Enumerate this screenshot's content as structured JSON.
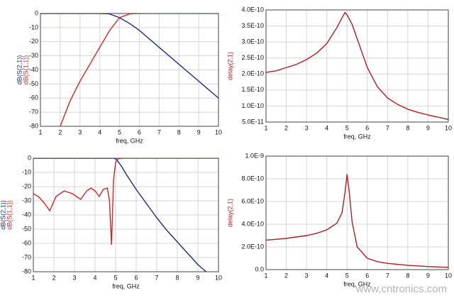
{
  "chart_data": [
    {
      "type": "line",
      "x_label": "freq, GHz",
      "x": [
        1,
        1.5,
        2,
        2.5,
        3,
        3.5,
        4,
        4.5,
        5,
        5.5,
        6,
        6.5,
        7,
        7.5,
        8,
        8.5,
        9,
        9.5,
        10
      ],
      "series": [
        {
          "name": "dB(S(2,1))",
          "color": "#1c2a8a",
          "values": [
            0,
            0,
            0,
            0,
            0,
            0,
            0,
            -0.3,
            -3,
            -7,
            -12,
            -18,
            -24,
            -30,
            -36,
            -42,
            -48,
            -54,
            -60
          ]
        },
        {
          "name": "dB(S(1,1))",
          "color": "#d42424",
          "values": [
            null,
            null,
            -80,
            -62,
            -48,
            -36,
            -24,
            -12,
            -3,
            -0.3,
            0,
            0,
            0,
            0,
            0,
            0,
            0,
            0,
            0
          ]
        }
      ],
      "xlim": [
        1,
        10
      ],
      "xticks": [
        1,
        2,
        3,
        4,
        5,
        6,
        7,
        8,
        9,
        10
      ],
      "ylim": [
        -80,
        0
      ],
      "yticks": [
        -80,
        -70,
        -60,
        -50,
        -40,
        -30,
        -20,
        -10,
        0
      ],
      "grid": true
    },
    {
      "type": "line",
      "x_label": "freq, GHz",
      "x": [
        1,
        1.5,
        2,
        2.5,
        3,
        3.5,
        4,
        4.5,
        4.75,
        4.9,
        5,
        5.25,
        5.5,
        6,
        6.5,
        7,
        7.5,
        8,
        8.5,
        9,
        9.5,
        10
      ],
      "series": [
        {
          "name": "delay(2,1)",
          "color": "#b51c1c",
          "values": [
            2.05e-10,
            2.1e-10,
            2.2e-10,
            2.3e-10,
            2.45e-10,
            2.65e-10,
            2.95e-10,
            3.45e-10,
            3.75e-10,
            3.92e-10,
            3.85e-10,
            3.55e-10,
            3.1e-10,
            2.2e-10,
            1.6e-10,
            1.25e-10,
            1.05e-10,
            9e-11,
            8e-11,
            7.2e-11,
            6.5e-11,
            5.8e-11
          ]
        }
      ],
      "xlim": [
        1,
        10
      ],
      "xticks": [
        1,
        2,
        3,
        4,
        5,
        6,
        7,
        8,
        9,
        10
      ],
      "ylim": [
        5e-11,
        4e-10
      ],
      "yticks": [
        {
          "value": 5e-11,
          "label": "5.0E-11"
        },
        {
          "value": 1e-10,
          "label": "1.0E-10"
        },
        {
          "value": 1.5e-10,
          "label": "1.5E-10"
        },
        {
          "value": 2e-10,
          "label": "2.0E-10"
        },
        {
          "value": 2.5e-10,
          "label": "2.5E-10"
        },
        {
          "value": 3e-10,
          "label": "3.0E-10"
        },
        {
          "value": 3.5e-10,
          "label": "3.5E-10"
        },
        {
          "value": 4e-10,
          "label": "4.0E-10"
        }
      ],
      "grid": true
    },
    {
      "type": "line",
      "x_label": "freq, GHz",
      "x": [
        1,
        1.25,
        1.5,
        1.8,
        2.1,
        2.5,
        2.9,
        3.3,
        3.6,
        3.8,
        4,
        4.2,
        4.4,
        4.6,
        4.7,
        4.8,
        4.9,
        5,
        5.1,
        5.3,
        5.5,
        6,
        6.5,
        7,
        7.5,
        8,
        8.5,
        9,
        9.4,
        10
      ],
      "series": [
        {
          "name": "dB(S(2,1))",
          "color": "#1c2a8a",
          "values": [
            0,
            0,
            0,
            0,
            0,
            0,
            0,
            0,
            0,
            0,
            0,
            0,
            0,
            0,
            0,
            0,
            0,
            -0.5,
            -2,
            -6,
            -11,
            -22,
            -32,
            -42,
            -51,
            -59,
            -67,
            -75,
            -80,
            null
          ]
        },
        {
          "name": "dB(S(1,1))",
          "color": "#d42424",
          "values": [
            -25,
            -27,
            -31,
            -37,
            -27,
            -23,
            -25,
            -29,
            -23,
            -21,
            -23,
            -27,
            -22,
            -21,
            -30,
            -61,
            -15,
            -3,
            -0.5,
            0,
            0,
            0,
            0,
            0,
            0,
            0,
            0,
            0,
            0,
            0
          ]
        }
      ],
      "xlim": [
        1,
        10
      ],
      "xticks": [
        1,
        2,
        3,
        4,
        5,
        6,
        7,
        8,
        9,
        10
      ],
      "ylim": [
        -80,
        0
      ],
      "yticks": [
        -80,
        -70,
        -60,
        -50,
        -40,
        -30,
        -20,
        -10,
        0
      ],
      "grid": true
    },
    {
      "type": "line",
      "x_label": "freq, GHz",
      "x": [
        1,
        2,
        3,
        3.5,
        4,
        4.5,
        4.75,
        4.9,
        5,
        5.1,
        5.25,
        5.5,
        6,
        6.5,
        7,
        8,
        9,
        10
      ],
      "series": [
        {
          "name": "delay(2,1)",
          "color": "#b51c1c",
          "values": [
            2.6e-10,
            2.75e-10,
            3e-10,
            3.2e-10,
            3.5e-10,
            4.1e-10,
            5e-10,
            6.8e-10,
            8.4e-10,
            7e-10,
            4.2e-10,
            2e-10,
            1e-10,
            7e-11,
            5.5e-11,
            3.8e-11,
            2.7e-11,
            2e-11
          ]
        }
      ],
      "xlim": [
        1,
        10
      ],
      "xticks": [
        1,
        2,
        3,
        4,
        5,
        6,
        7,
        8,
        9,
        10
      ],
      "ylim": [
        0,
        1e-09
      ],
      "yticks": [
        {
          "value": 0,
          "label": "0.0"
        },
        {
          "value": 2e-10,
          "label": "2.0E-10"
        },
        {
          "value": 4e-10,
          "label": "4.0E-10"
        },
        {
          "value": 6e-10,
          "label": "6.0E-10"
        },
        {
          "value": 8e-10,
          "label": "8.0E-10"
        },
        {
          "value": 1e-09,
          "label": "1.0E-9"
        }
      ],
      "grid": true
    }
  ],
  "watermark": "www.cntronics.com"
}
